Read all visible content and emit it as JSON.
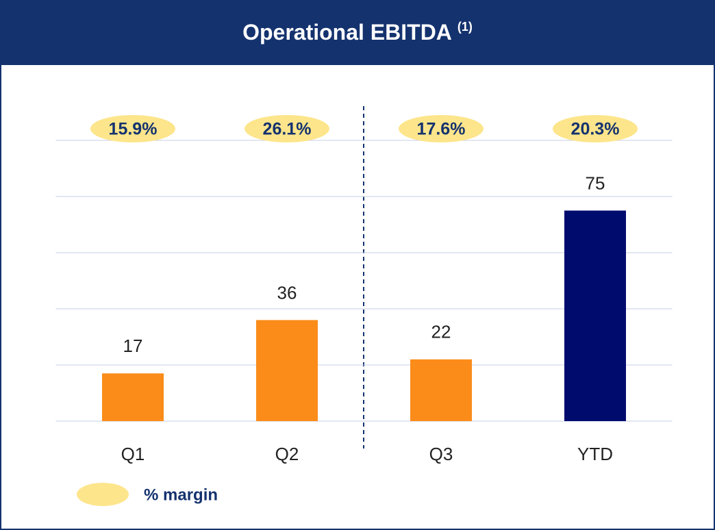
{
  "chart_data": {
    "type": "bar",
    "title": "Operational EBITDA",
    "title_note": "(1)",
    "categories": [
      "Q1",
      "Q2",
      "Q3",
      "YTD"
    ],
    "values": [
      17,
      36,
      22,
      75
    ],
    "colors": [
      "#fb8c1a",
      "#fb8c1a",
      "#fb8c1a",
      "#000b6e"
    ],
    "ylim": [
      0,
      100
    ],
    "yticks": [
      0,
      20,
      40,
      60,
      80,
      100
    ],
    "grid": true,
    "margins": {
      "name": "% margin",
      "color": "#fde58b",
      "values": [
        15.9,
        26.1,
        17.6,
        20.3
      ],
      "value_labels": [
        "15.9%",
        "26.1%",
        "17.6%",
        "20.3%"
      ]
    }
  }
}
